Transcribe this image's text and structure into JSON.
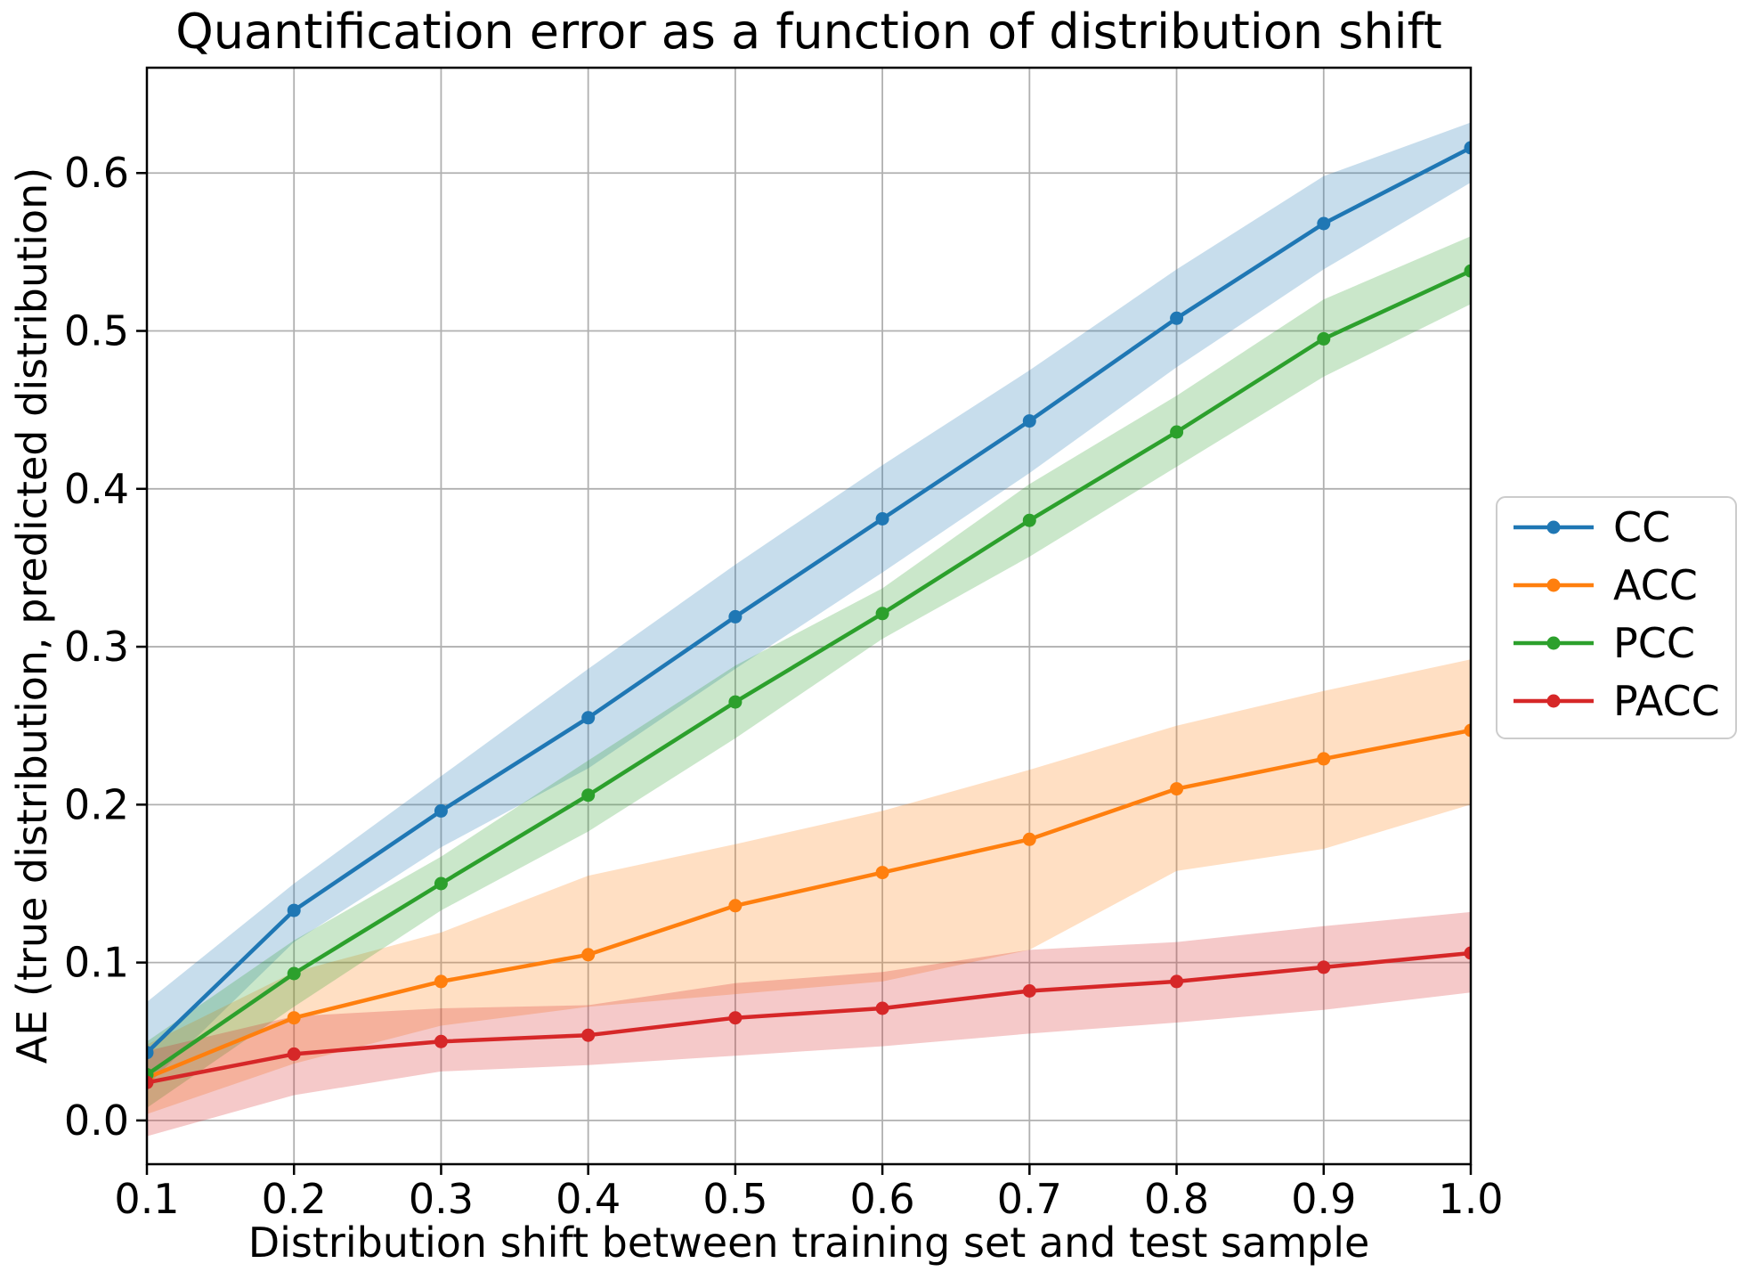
{
  "figure": {
    "title": "Quantification error as a function of distribution shift",
    "xlabel": "Distribution shift between training set and test sample",
    "ylabel": "AE (true distribution, predicted distribution)"
  },
  "chart_data": {
    "type": "line",
    "title": "Quantification error as a function of distribution shift",
    "xlabel": "Distribution shift between training set and test sample",
    "ylabel": "AE (true distribution, predicted distribution)",
    "grid": true,
    "grid_color": "#b0b0b0",
    "background_color": "#ffffff",
    "text_color": "#000000",
    "legend_position": "right-outside",
    "legend_border_color": "#cccccc",
    "band_opacity": 0.25,
    "xlim": [
      0.1,
      1.0
    ],
    "ylim": [
      -0.0277,
      0.6667
    ],
    "x": [
      0.1,
      0.2,
      0.3,
      0.4,
      0.5,
      0.6,
      0.7,
      0.8,
      0.9,
      1.0
    ],
    "xtick_labels": [
      "0.1",
      "0.2",
      "0.3",
      "0.4",
      "0.5",
      "0.6",
      "0.7",
      "0.8",
      "0.9",
      "1.0"
    ],
    "ytick_values": [
      0.0,
      0.1,
      0.2,
      0.3,
      0.4,
      0.5,
      0.6
    ],
    "ytick_labels": [
      "0.0",
      "0.1",
      "0.2",
      "0.3",
      "0.4",
      "0.5",
      "0.6"
    ],
    "series": [
      {
        "name": "CC",
        "color": "#1f77b4",
        "values": [
          0.043,
          0.133,
          0.196,
          0.255,
          0.319,
          0.381,
          0.443,
          0.508,
          0.568,
          0.616
        ],
        "band_low": [
          0.022,
          0.113,
          0.173,
          0.223,
          0.286,
          0.347,
          0.41,
          0.477,
          0.539,
          0.594
        ],
        "band_high": [
          0.075,
          0.15,
          0.218,
          0.286,
          0.352,
          0.415,
          0.475,
          0.539,
          0.598,
          0.632
        ]
      },
      {
        "name": "ACC",
        "color": "#ff7f0e",
        "values": [
          0.027,
          0.065,
          0.088,
          0.105,
          0.136,
          0.157,
          0.178,
          0.21,
          0.229,
          0.247
        ],
        "band_low": [
          0.004,
          0.036,
          0.06,
          0.072,
          0.08,
          0.088,
          0.108,
          0.158,
          0.172,
          0.2
        ],
        "band_high": [
          0.048,
          0.094,
          0.119,
          0.155,
          0.175,
          0.196,
          0.222,
          0.25,
          0.272,
          0.292
        ]
      },
      {
        "name": "PCC",
        "color": "#2ca02c",
        "values": [
          0.029,
          0.093,
          0.15,
          0.206,
          0.265,
          0.321,
          0.38,
          0.436,
          0.495,
          0.538
        ],
        "band_low": [
          0.008,
          0.072,
          0.133,
          0.183,
          0.242,
          0.305,
          0.357,
          0.414,
          0.471,
          0.517
        ],
        "band_high": [
          0.05,
          0.114,
          0.167,
          0.228,
          0.288,
          0.337,
          0.403,
          0.459,
          0.52,
          0.56
        ]
      },
      {
        "name": "PACC",
        "color": "#d62728",
        "values": [
          0.024,
          0.042,
          0.05,
          0.054,
          0.065,
          0.071,
          0.082,
          0.088,
          0.097,
          0.106
        ],
        "band_low": [
          -0.01,
          0.016,
          0.031,
          0.035,
          0.041,
          0.047,
          0.055,
          0.062,
          0.07,
          0.081
        ],
        "band_high": [
          0.044,
          0.066,
          0.071,
          0.073,
          0.087,
          0.094,
          0.108,
          0.113,
          0.123,
          0.132
        ]
      }
    ]
  }
}
